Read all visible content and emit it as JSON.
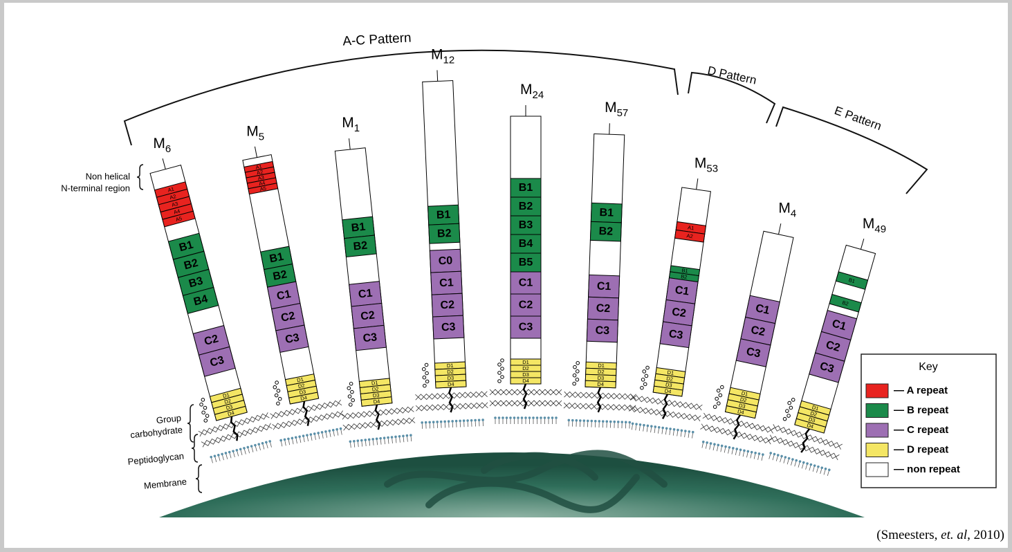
{
  "patterns": [
    "A-C Pattern",
    "D Pattern",
    "E Pattern"
  ],
  "regions": {
    "n_terminal": [
      "Non helical",
      "N-terminal region"
    ],
    "carbohydrate": [
      "Group",
      "carbohydrate"
    ],
    "peptidoglycan": "Peptidoglycan",
    "membrane": "Membrane"
  },
  "proteins": [
    {
      "base": "M",
      "sub": "6",
      "segments": [
        "A1",
        "A2",
        "A3",
        "A4",
        "A5",
        "B1",
        "B2",
        "B3",
        "B4",
        "C2",
        "C3",
        "D1",
        "D2",
        "D3",
        "D4"
      ]
    },
    {
      "base": "M",
      "sub": "5",
      "segments": [
        "A1",
        "A2",
        "A3",
        "A4",
        "A5",
        "B1",
        "B2",
        "C1",
        "C2",
        "C3",
        "D1",
        "D2",
        "D3",
        "D4"
      ]
    },
    {
      "base": "M",
      "sub": "1",
      "segments": [
        "B1",
        "B2",
        "C1",
        "C2",
        "C3",
        "D1",
        "D2",
        "D3",
        "D4"
      ]
    },
    {
      "base": "M",
      "sub": "12",
      "segments": [
        "B1",
        "B2",
        "C0",
        "C1",
        "C2",
        "C3",
        "D1",
        "D2",
        "D3",
        "D4"
      ]
    },
    {
      "base": "M",
      "sub": "24",
      "segments": [
        "B1",
        "B2",
        "B3",
        "B4",
        "B5",
        "C1",
        "C2",
        "C3",
        "D1",
        "D2",
        "D3",
        "D4"
      ]
    },
    {
      "base": "M",
      "sub": "57",
      "segments": [
        "B1",
        "B2",
        "C1",
        "C2",
        "C3",
        "D1",
        "D2",
        "D3",
        "D4"
      ]
    },
    {
      "base": "M",
      "sub": "53",
      "segments": [
        "A1",
        "A2",
        "B1",
        "B2",
        "C1",
        "C2",
        "C3",
        "D1",
        "D2",
        "D3",
        "D4"
      ]
    },
    {
      "base": "M",
      "sub": "4",
      "segments": [
        "C1",
        "C2",
        "C3",
        "D1",
        "D2",
        "D3",
        "D4"
      ]
    },
    {
      "base": "M",
      "sub": "49",
      "segments": [
        "B1",
        "B2",
        "C1",
        "C2",
        "C3",
        "D1",
        "D2",
        "D3",
        "D4"
      ]
    }
  ],
  "key": {
    "title": "Key",
    "entries": [
      {
        "label": "— A repeat",
        "color": "#e8231f"
      },
      {
        "label": "— B repeat",
        "color": "#1b8a4a"
      },
      {
        "label": "— C repeat",
        "color": "#9d6fb3"
      },
      {
        "label": "— D repeat",
        "color": "#f4e664"
      },
      {
        "label": "— non repeat",
        "color": "#ffffff"
      }
    ]
  },
  "citation": {
    "pre": "(Smeesters, ",
    "italic": "et. al",
    "post": ", 2010)"
  }
}
